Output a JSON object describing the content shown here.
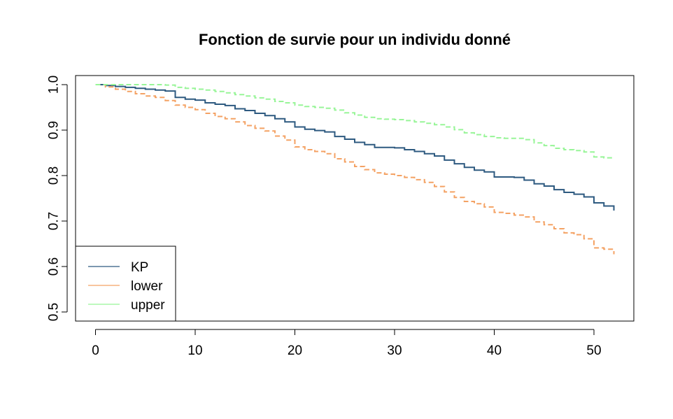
{
  "chart_data": {
    "type": "line",
    "title": "Fonction de survie pour un individu donné",
    "xlabel": "",
    "ylabel": "",
    "xlim": [
      -2,
      54
    ],
    "ylim": [
      0.48,
      1.02
    ],
    "x_ticks": [
      0,
      10,
      20,
      30,
      40,
      50
    ],
    "x_tick_labels": [
      "0",
      "10",
      "20",
      "30",
      "40",
      "50"
    ],
    "y_ticks": [
      0.5,
      0.6,
      0.7,
      0.8,
      0.9,
      1.0
    ],
    "y_tick_labels": [
      "0.5",
      "0.6",
      "0.7",
      "0.8",
      "0.9",
      "1.0"
    ],
    "grid": false,
    "step": true,
    "legend_position": "bottom-left",
    "series": [
      {
        "name": "KP",
        "color": "#2E5A80",
        "line_style": "solid",
        "points": [
          [
            0,
            1.0
          ],
          [
            1,
            0.998
          ],
          [
            2,
            0.996
          ],
          [
            3,
            0.994
          ],
          [
            4,
            0.992
          ],
          [
            5,
            0.99
          ],
          [
            6,
            0.988
          ],
          [
            7,
            0.986
          ],
          [
            8,
            0.972
          ],
          [
            9,
            0.968
          ],
          [
            10,
            0.966
          ],
          [
            11,
            0.96
          ],
          [
            12,
            0.957
          ],
          [
            13,
            0.954
          ],
          [
            14,
            0.947
          ],
          [
            15,
            0.943
          ],
          [
            16,
            0.937
          ],
          [
            17,
            0.932
          ],
          [
            18,
            0.925
          ],
          [
            19,
            0.918
          ],
          [
            20,
            0.907
          ],
          [
            21,
            0.902
          ],
          [
            22,
            0.899
          ],
          [
            23,
            0.896
          ],
          [
            24,
            0.886
          ],
          [
            25,
            0.88
          ],
          [
            26,
            0.873
          ],
          [
            27,
            0.868
          ],
          [
            28,
            0.862
          ],
          [
            29,
            0.862
          ],
          [
            30,
            0.861
          ],
          [
            31,
            0.857
          ],
          [
            32,
            0.853
          ],
          [
            33,
            0.848
          ],
          [
            34,
            0.843
          ],
          [
            35,
            0.834
          ],
          [
            36,
            0.826
          ],
          [
            37,
            0.818
          ],
          [
            38,
            0.812
          ],
          [
            39,
            0.808
          ],
          [
            40,
            0.797
          ],
          [
            41,
            0.797
          ],
          [
            42,
            0.796
          ],
          [
            43,
            0.79
          ],
          [
            44,
            0.782
          ],
          [
            45,
            0.777
          ],
          [
            46,
            0.769
          ],
          [
            47,
            0.763
          ],
          [
            48,
            0.759
          ],
          [
            49,
            0.753
          ],
          [
            50,
            0.74
          ],
          [
            51,
            0.733
          ],
          [
            52,
            0.723
          ]
        ]
      },
      {
        "name": "lower",
        "color": "#F4A264",
        "line_style": "dashed",
        "points": [
          [
            0,
            1.0
          ],
          [
            1,
            0.995
          ],
          [
            2,
            0.99
          ],
          [
            3,
            0.985
          ],
          [
            4,
            0.98
          ],
          [
            5,
            0.975
          ],
          [
            6,
            0.972
          ],
          [
            7,
            0.965
          ],
          [
            8,
            0.955
          ],
          [
            9,
            0.95
          ],
          [
            10,
            0.945
          ],
          [
            11,
            0.937
          ],
          [
            12,
            0.93
          ],
          [
            13,
            0.925
          ],
          [
            14,
            0.918
          ],
          [
            15,
            0.91
          ],
          [
            16,
            0.904
          ],
          [
            17,
            0.898
          ],
          [
            18,
            0.887
          ],
          [
            19,
            0.878
          ],
          [
            20,
            0.863
          ],
          [
            21,
            0.857
          ],
          [
            22,
            0.853
          ],
          [
            23,
            0.848
          ],
          [
            24,
            0.837
          ],
          [
            25,
            0.83
          ],
          [
            26,
            0.82
          ],
          [
            27,
            0.813
          ],
          [
            28,
            0.806
          ],
          [
            29,
            0.803
          ],
          [
            30,
            0.8
          ],
          [
            31,
            0.796
          ],
          [
            32,
            0.791
          ],
          [
            33,
            0.785
          ],
          [
            34,
            0.776
          ],
          [
            35,
            0.764
          ],
          [
            36,
            0.752
          ],
          [
            37,
            0.743
          ],
          [
            38,
            0.738
          ],
          [
            39,
            0.731
          ],
          [
            40,
            0.719
          ],
          [
            41,
            0.717
          ],
          [
            42,
            0.713
          ],
          [
            43,
            0.709
          ],
          [
            44,
            0.698
          ],
          [
            45,
            0.692
          ],
          [
            46,
            0.683
          ],
          [
            47,
            0.674
          ],
          [
            48,
            0.67
          ],
          [
            49,
            0.661
          ],
          [
            50,
            0.641
          ],
          [
            51,
            0.638
          ],
          [
            52,
            0.627
          ]
        ]
      },
      {
        "name": "upper",
        "color": "#98F598",
        "line_style": "dashed",
        "points": [
          [
            0,
            1.0
          ],
          [
            1,
            1.0
          ],
          [
            2,
            1.0
          ],
          [
            3,
            1.0
          ],
          [
            4,
            1.0
          ],
          [
            5,
            1.0
          ],
          [
            6,
            1.0
          ],
          [
            7,
            0.999
          ],
          [
            8,
            0.994
          ],
          [
            9,
            0.992
          ],
          [
            10,
            0.99
          ],
          [
            11,
            0.988
          ],
          [
            12,
            0.985
          ],
          [
            13,
            0.982
          ],
          [
            14,
            0.978
          ],
          [
            15,
            0.975
          ],
          [
            16,
            0.971
          ],
          [
            17,
            0.968
          ],
          [
            18,
            0.963
          ],
          [
            19,
            0.96
          ],
          [
            20,
            0.955
          ],
          [
            21,
            0.952
          ],
          [
            22,
            0.95
          ],
          [
            23,
            0.948
          ],
          [
            24,
            0.944
          ],
          [
            25,
            0.938
          ],
          [
            26,
            0.933
          ],
          [
            27,
            0.928
          ],
          [
            28,
            0.925
          ],
          [
            29,
            0.924
          ],
          [
            30,
            0.923
          ],
          [
            31,
            0.921
          ],
          [
            32,
            0.918
          ],
          [
            33,
            0.915
          ],
          [
            34,
            0.912
          ],
          [
            35,
            0.907
          ],
          [
            36,
            0.901
          ],
          [
            37,
            0.894
          ],
          [
            38,
            0.89
          ],
          [
            39,
            0.886
          ],
          [
            40,
            0.883
          ],
          [
            41,
            0.882
          ],
          [
            42,
            0.882
          ],
          [
            43,
            0.879
          ],
          [
            44,
            0.872
          ],
          [
            45,
            0.866
          ],
          [
            46,
            0.86
          ],
          [
            47,
            0.857
          ],
          [
            48,
            0.855
          ],
          [
            49,
            0.852
          ],
          [
            50,
            0.841
          ],
          [
            51,
            0.839
          ],
          [
            52,
            0.839
          ]
        ]
      }
    ]
  }
}
